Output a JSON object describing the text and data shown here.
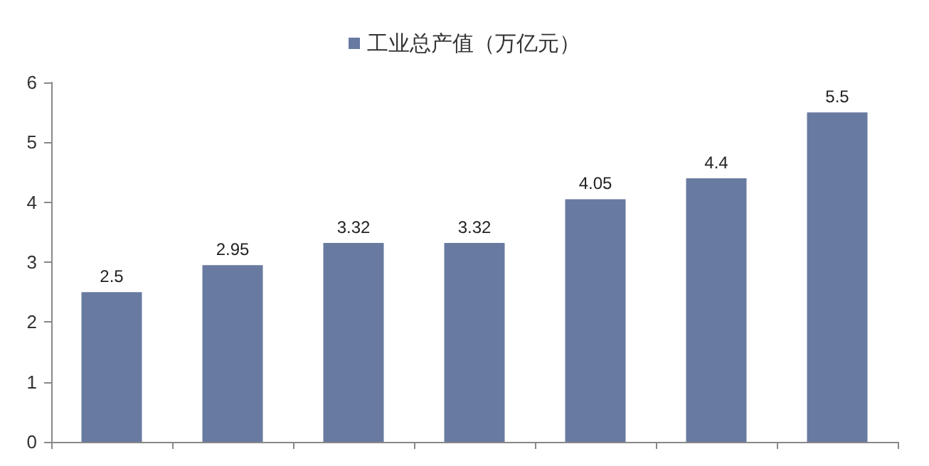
{
  "chart_data": {
    "type": "bar",
    "categories": [
      null,
      null,
      null,
      null,
      null,
      null,
      null
    ],
    "series": [
      {
        "name": "工业总产值（万亿元）",
        "color": "#687aa0",
        "values": [
          2.5,
          2.95,
          3.32,
          3.32,
          4.05,
          4.4,
          5.5
        ]
      }
    ],
    "ylim": [
      0,
      6
    ],
    "yticks": [
      0,
      1,
      2,
      3,
      4,
      5,
      6
    ],
    "grid": false,
    "legend": "top",
    "data_labels": true
  }
}
